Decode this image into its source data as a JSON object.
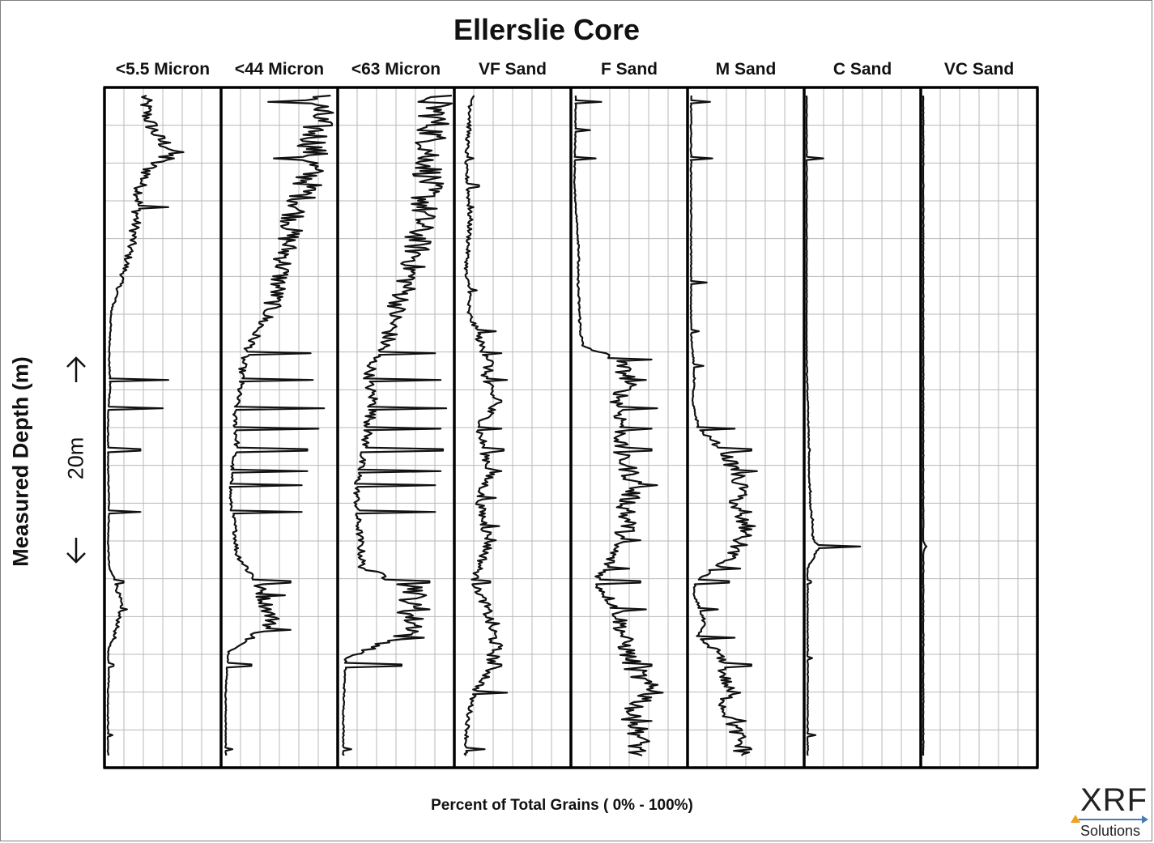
{
  "chart_data": {
    "type": "line",
    "title": "Ellerslie Core",
    "ylabel": "Measured Depth (m)",
    "scale_label": "20m",
    "xlabel": "Percent of Total Grains ( 0% - 100%)",
    "xlim": [
      0,
      100
    ],
    "grid": true,
    "series": [
      {
        "name": "<5.5 Micron",
        "profile": [
          [
            0,
            32
          ],
          [
            5,
            36
          ],
          [
            8,
            45
          ],
          [
            10,
            60
          ],
          [
            12,
            40
          ],
          [
            15,
            30
          ],
          [
            18,
            28
          ],
          [
            22,
            24
          ],
          [
            26,
            18
          ],
          [
            30,
            10
          ],
          [
            33,
            4
          ],
          [
            36,
            3
          ],
          [
            40,
            2
          ],
          [
            44,
            3
          ],
          [
            48,
            1
          ],
          [
            55,
            1
          ],
          [
            62,
            2
          ],
          [
            66,
            1
          ],
          [
            70,
            2
          ],
          [
            72,
            8
          ],
          [
            75,
            12
          ],
          [
            78,
            10
          ],
          [
            82,
            1
          ],
          [
            85,
            2
          ],
          [
            88,
            1
          ],
          [
            100,
            1
          ]
        ],
        "spikes": [
          [
            11,
            60
          ],
          [
            18,
            55
          ],
          [
            43,
            55
          ],
          [
            47,
            50
          ],
          [
            53,
            30
          ],
          [
            62,
            30
          ],
          [
            72,
            15
          ],
          [
            76,
            18
          ],
          [
            80,
            8
          ],
          [
            84,
            6
          ],
          [
            94,
            5
          ],
          [
            100,
            3
          ]
        ]
      },
      {
        "name": "<44 Micron",
        "profile": [
          [
            0,
            85
          ],
          [
            5,
            84
          ],
          [
            8,
            82
          ],
          [
            12,
            78
          ],
          [
            15,
            75
          ],
          [
            20,
            62
          ],
          [
            25,
            55
          ],
          [
            30,
            48
          ],
          [
            33,
            42
          ],
          [
            36,
            30
          ],
          [
            40,
            18
          ],
          [
            44,
            15
          ],
          [
            48,
            10
          ],
          [
            52,
            12
          ],
          [
            55,
            8
          ],
          [
            60,
            6
          ],
          [
            64,
            10
          ],
          [
            68,
            12
          ],
          [
            72,
            30
          ],
          [
            74,
            35
          ],
          [
            78,
            45
          ],
          [
            82,
            5
          ],
          [
            85,
            3
          ],
          [
            88,
            2
          ],
          [
            100,
            2
          ]
        ],
        "spikes": [
          [
            3,
            40
          ],
          [
            11,
            45
          ],
          [
            39,
            78
          ],
          [
            43,
            80
          ],
          [
            47,
            90
          ],
          [
            50,
            85
          ],
          [
            53,
            75
          ],
          [
            56,
            75
          ],
          [
            58,
            70
          ],
          [
            62,
            70
          ],
          [
            72,
            60
          ],
          [
            74,
            55
          ],
          [
            79,
            60
          ],
          [
            84,
            25
          ],
          [
            96,
            8
          ]
        ]
      },
      {
        "name": "<63 Micron",
        "profile": [
          [
            0,
            88
          ],
          [
            5,
            85
          ],
          [
            8,
            82
          ],
          [
            12,
            80
          ],
          [
            15,
            78
          ],
          [
            18,
            75
          ],
          [
            22,
            70
          ],
          [
            25,
            68
          ],
          [
            28,
            62
          ],
          [
            30,
            58
          ],
          [
            33,
            50
          ],
          [
            36,
            45
          ],
          [
            38,
            40
          ],
          [
            40,
            30
          ],
          [
            43,
            25
          ],
          [
            46,
            30
          ],
          [
            50,
            25
          ],
          [
            54,
            20
          ],
          [
            58,
            15
          ],
          [
            62,
            15
          ],
          [
            66,
            18
          ],
          [
            70,
            20
          ],
          [
            73,
            70
          ],
          [
            76,
            60
          ],
          [
            79,
            70
          ],
          [
            83,
            5
          ],
          [
            86,
            4
          ],
          [
            90,
            3
          ],
          [
            100,
            3
          ]
        ],
        "spikes": [
          [
            3,
            70
          ],
          [
            11,
            70
          ],
          [
            39,
            85
          ],
          [
            43,
            90
          ],
          [
            47,
            95
          ],
          [
            50,
            90
          ],
          [
            53,
            92
          ],
          [
            56,
            90
          ],
          [
            58,
            85
          ],
          [
            62,
            85
          ],
          [
            72,
            80
          ],
          [
            76,
            80
          ],
          [
            80,
            75
          ],
          [
            84,
            55
          ],
          [
            96,
            10
          ]
        ]
      },
      {
        "name": "VF Sand",
        "profile": [
          [
            0,
            15
          ],
          [
            5,
            12
          ],
          [
            8,
            10
          ],
          [
            12,
            8
          ],
          [
            15,
            10
          ],
          [
            20,
            12
          ],
          [
            24,
            10
          ],
          [
            28,
            8
          ],
          [
            30,
            12
          ],
          [
            33,
            10
          ],
          [
            36,
            18
          ],
          [
            38,
            22
          ],
          [
            40,
            30
          ],
          [
            43,
            25
          ],
          [
            46,
            35
          ],
          [
            50,
            20
          ],
          [
            53,
            25
          ],
          [
            56,
            30
          ],
          [
            60,
            20
          ],
          [
            64,
            25
          ],
          [
            66,
            30
          ],
          [
            70,
            20
          ],
          [
            72,
            15
          ],
          [
            75,
            25
          ],
          [
            78,
            30
          ],
          [
            81,
            35
          ],
          [
            85,
            30
          ],
          [
            88,
            15
          ],
          [
            92,
            10
          ],
          [
            96,
            8
          ],
          [
            100,
            8
          ]
        ],
        "spikes": [
          [
            11,
            15
          ],
          [
            15,
            20
          ],
          [
            18,
            15
          ],
          [
            30,
            18
          ],
          [
            36,
            35
          ],
          [
            39,
            40
          ],
          [
            43,
            45
          ],
          [
            46,
            40
          ],
          [
            50,
            40
          ],
          [
            53,
            42
          ],
          [
            56,
            40
          ],
          [
            60,
            35
          ],
          [
            64,
            38
          ],
          [
            66,
            35
          ],
          [
            72,
            30
          ],
          [
            78,
            38
          ],
          [
            84,
            40
          ],
          [
            88,
            45
          ],
          [
            96,
            25
          ]
        ]
      },
      {
        "name": "F Sand",
        "profile": [
          [
            0,
            2
          ],
          [
            5,
            2
          ],
          [
            15,
            1
          ],
          [
            20,
            3
          ],
          [
            24,
            5
          ],
          [
            28,
            4
          ],
          [
            32,
            5
          ],
          [
            35,
            6
          ],
          [
            38,
            8
          ],
          [
            40,
            40
          ],
          [
            43,
            50
          ],
          [
            46,
            40
          ],
          [
            50,
            45
          ],
          [
            53,
            40
          ],
          [
            56,
            50
          ],
          [
            58,
            55
          ],
          [
            62,
            45
          ],
          [
            64,
            50
          ],
          [
            66,
            40
          ],
          [
            70,
            30
          ],
          [
            72,
            20
          ],
          [
            74,
            30
          ],
          [
            76,
            40
          ],
          [
            80,
            45
          ],
          [
            83,
            50
          ],
          [
            86,
            60
          ],
          [
            88,
            70
          ],
          [
            91,
            50
          ],
          [
            94,
            60
          ],
          [
            98,
            55
          ],
          [
            100,
            55
          ]
        ],
        "spikes": [
          [
            3,
            25
          ],
          [
            7,
            15
          ],
          [
            11,
            20
          ],
          [
            40,
            70
          ],
          [
            43,
            65
          ],
          [
            47,
            75
          ],
          [
            50,
            70
          ],
          [
            53,
            70
          ],
          [
            58,
            75
          ],
          [
            62,
            55
          ],
          [
            66,
            60
          ],
          [
            70,
            50
          ],
          [
            72,
            60
          ],
          [
            76,
            65
          ],
          [
            84,
            70
          ],
          [
            88,
            80
          ],
          [
            92,
            70
          ],
          [
            96,
            60
          ]
        ]
      },
      {
        "name": "M Sand",
        "profile": [
          [
            0,
            1
          ],
          [
            12,
            1
          ],
          [
            20,
            1
          ],
          [
            30,
            1
          ],
          [
            36,
            1
          ],
          [
            40,
            3
          ],
          [
            43,
            4
          ],
          [
            46,
            2
          ],
          [
            50,
            8
          ],
          [
            53,
            30
          ],
          [
            56,
            40
          ],
          [
            58,
            45
          ],
          [
            62,
            40
          ],
          [
            64,
            50
          ],
          [
            66,
            45
          ],
          [
            68,
            40
          ],
          [
            72,
            5
          ],
          [
            74,
            3
          ],
          [
            76,
            10
          ],
          [
            78,
            12
          ],
          [
            80,
            6
          ],
          [
            82,
            25
          ],
          [
            85,
            30
          ],
          [
            88,
            35
          ],
          [
            90,
            30
          ],
          [
            93,
            40
          ],
          [
            95,
            45
          ],
          [
            98,
            50
          ],
          [
            100,
            50
          ]
        ],
        "spikes": [
          [
            3,
            18
          ],
          [
            11,
            20
          ],
          [
            29,
            15
          ],
          [
            36,
            8
          ],
          [
            41,
            12
          ],
          [
            50,
            40
          ],
          [
            53,
            55
          ],
          [
            56,
            60
          ],
          [
            59,
            50
          ],
          [
            62,
            55
          ],
          [
            65,
            50
          ],
          [
            70,
            45
          ],
          [
            72,
            35
          ],
          [
            76,
            25
          ],
          [
            80,
            40
          ],
          [
            84,
            55
          ],
          [
            88,
            45
          ],
          [
            92,
            50
          ],
          [
            96,
            55
          ]
        ]
      },
      {
        "name": "C Sand",
        "profile": [
          [
            0,
            0
          ],
          [
            20,
            0
          ],
          [
            40,
            0
          ],
          [
            46,
            1
          ],
          [
            52,
            2
          ],
          [
            56,
            2
          ],
          [
            60,
            3
          ],
          [
            62,
            4
          ],
          [
            64,
            5
          ],
          [
            66,
            6
          ],
          [
            67,
            12
          ],
          [
            68,
            8
          ],
          [
            70,
            1
          ],
          [
            72,
            1
          ],
          [
            80,
            1
          ],
          [
            90,
            1
          ],
          [
            100,
            1
          ]
        ],
        "spikes": [
          [
            11,
            15
          ],
          [
            53,
            3
          ],
          [
            59,
            4
          ],
          [
            63,
            6
          ],
          [
            67,
            48
          ],
          [
            72,
            4
          ],
          [
            83,
            5
          ],
          [
            94,
            8
          ]
        ]
      },
      {
        "name": "VC Sand",
        "profile": [
          [
            0,
            0
          ],
          [
            50,
            0
          ],
          [
            66,
            0
          ],
          [
            67,
            2
          ],
          [
            68,
            0
          ],
          [
            100,
            0
          ]
        ],
        "spikes": [
          [
            67,
            3
          ]
        ]
      }
    ]
  },
  "logo": {
    "name": "XRF",
    "tagline": "Solutions"
  }
}
